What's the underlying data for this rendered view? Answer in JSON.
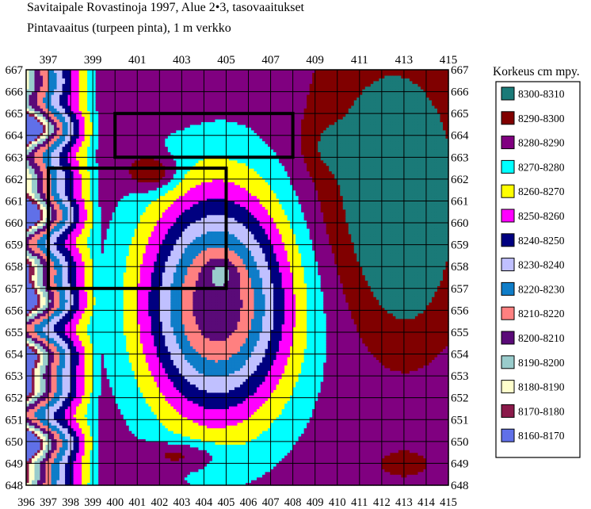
{
  "chart_data": {
    "type": "heatmap",
    "title": "Savitaipale Rovastinoja 1997, Alue 2•3, tasovaaitukset",
    "subtitle": "Pintavaaitus (turpeen pinta),  1 m verkko",
    "top_x_ticks": [
      "397",
      "399",
      "401",
      "403",
      "405",
      "407",
      "409",
      "411",
      "413",
      "415"
    ],
    "bottom_x_ticks": [
      "396",
      "397",
      "398",
      "399",
      "400",
      "401",
      "402",
      "403",
      "404",
      "405",
      "406",
      "407",
      "408",
      "409",
      "410",
      "411",
      "412",
      "413",
      "414",
      "415"
    ],
    "y_ticks": [
      "648",
      "649",
      "650",
      "651",
      "652",
      "653",
      "654",
      "655",
      "656",
      "657",
      "658",
      "659",
      "660",
      "661",
      "662",
      "663",
      "664",
      "665",
      "666",
      "667"
    ],
    "xlim": [
      396,
      415
    ],
    "ylim": [
      648,
      667
    ],
    "grid": true,
    "legend_position": "right",
    "legend": {
      "title": "Korkeus cm mpy.",
      "entries": [
        {
          "label": "8300-8310",
          "color": "#1a7a78",
          "level": 8305
        },
        {
          "label": "8290-8300",
          "color": "#800000",
          "level": 8295
        },
        {
          "label": "8280-8290",
          "color": "#800080",
          "level": 8285
        },
        {
          "label": "8270-8280",
          "color": "#00ffff",
          "level": 8275
        },
        {
          "label": "8260-8270",
          "color": "#ffff00",
          "level": 8265
        },
        {
          "label": "8250-8260",
          "color": "#ff00ff",
          "level": 8255
        },
        {
          "label": "8240-8250",
          "color": "#000080",
          "level": 8245
        },
        {
          "label": "8230-8240",
          "color": "#c0c0ff",
          "level": 8235
        },
        {
          "label": "8220-8230",
          "color": "#0f7dc8",
          "level": 8225
        },
        {
          "label": "8210-8220",
          "color": "#ff8080",
          "level": 8215
        },
        {
          "label": "8200-8210",
          "color": "#5a0a78",
          "level": 8205
        },
        {
          "label": "8190-8200",
          "color": "#99cccc",
          "level": 8195
        },
        {
          "label": "8180-8190",
          "color": "#ffffcc",
          "level": 8185
        },
        {
          "label": "8170-8180",
          "color": "#8a1a4a",
          "level": 8175
        },
        {
          "label": "8160-8170",
          "color": "#6070e8",
          "level": 8165
        }
      ]
    },
    "surface": {
      "description_units": "cm",
      "base_level": 8286,
      "west_slope": {
        "x_start": 396,
        "x_end": 399.4,
        "level_at_start": 8170,
        "level_at_end": 8286
      },
      "depressions": [
        {
          "x": 404.6,
          "y": 656.3,
          "sx": 3.3,
          "sy": 5.2,
          "depth": 85
        },
        {
          "x": 404.8,
          "y": 657.8,
          "sx": 0.7,
          "sy": 0.6,
          "depth": 12
        }
      ],
      "mounds": [
        {
          "x": 412.5,
          "y": 662,
          "sx": 3.3,
          "sy": 6,
          "height": 26
        },
        {
          "x": 413.2,
          "y": 658.5,
          "sx": 1.6,
          "sy": 3.5,
          "height": 12
        },
        {
          "x": 401.7,
          "y": 662.3,
          "sx": 1.1,
          "sy": 0.8,
          "height": 23
        },
        {
          "x": 403,
          "y": 649.4,
          "sx": 1.6,
          "sy": 0.6,
          "height": 16
        },
        {
          "x": 413,
          "y": 649,
          "sx": 0.9,
          "sy": 0.5,
          "height": 14
        },
        {
          "x": 409.5,
          "y": 663.5,
          "sx": 1,
          "sy": 1.2,
          "height": 8
        },
        {
          "x": 402.5,
          "y": 665.6,
          "sx": 1.4,
          "sy": 0.8,
          "height": 6
        }
      ]
    },
    "rectangles": [
      {
        "x0": 400,
        "x1": 408,
        "y0": 663,
        "y1": 665
      },
      {
        "x0": 397,
        "x1": 405,
        "y0": 657,
        "y1": 662.5
      }
    ]
  }
}
